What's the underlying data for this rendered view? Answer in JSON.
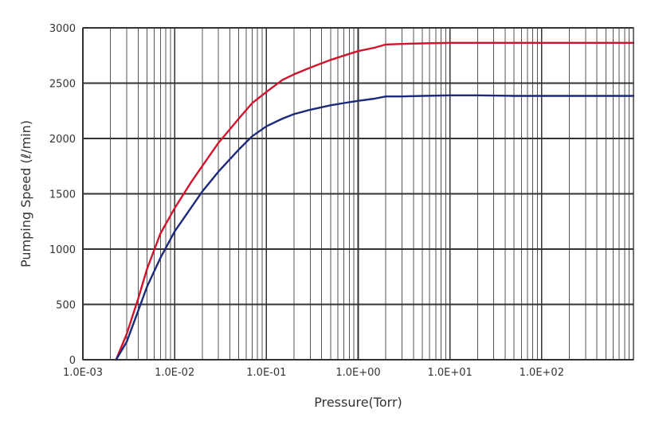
{
  "chart_data": {
    "type": "line",
    "title": "",
    "xlabel": "Pressure(Torr)",
    "ylabel": "Pumping Speed (ℓ/min)",
    "x_scale": "log",
    "xlim": [
      0.001,
      1000
    ],
    "ylim": [
      0,
      3000
    ],
    "x_ticks": [
      0.001,
      0.01,
      0.1,
      1,
      10,
      100
    ],
    "x_tick_labels": [
      "1.0E-03",
      "1.0E-02",
      "1.0E-01",
      "1.0E+00",
      "1.0E+01",
      "1.0E+02"
    ],
    "y_ticks": [
      0,
      500,
      1000,
      1500,
      2000,
      2500,
      3000
    ],
    "y_tick_labels": [
      "0",
      "500",
      "1000",
      "1500",
      "2000",
      "2500",
      "3000"
    ],
    "grid": true,
    "legend": "none",
    "series": [
      {
        "color": "#d0142c",
        "x": [
          0.0023,
          0.003,
          0.004,
          0.005,
          0.007,
          0.01,
          0.015,
          0.02,
          0.03,
          0.05,
          0.07,
          0.1,
          0.15,
          0.2,
          0.3,
          0.5,
          0.7,
          1,
          1.5,
          2,
          3,
          5,
          10,
          20,
          50,
          100,
          200,
          1000
        ],
        "y": [
          0,
          230,
          550,
          820,
          1140,
          1370,
          1600,
          1750,
          1960,
          2180,
          2320,
          2420,
          2530,
          2580,
          2640,
          2710,
          2750,
          2790,
          2820,
          2850,
          2855,
          2860,
          2865,
          2865,
          2865,
          2865,
          2865,
          2865
        ]
      },
      {
        "color": "#1b2a7a",
        "x": [
          0.0023,
          0.003,
          0.004,
          0.005,
          0.007,
          0.01,
          0.015,
          0.02,
          0.03,
          0.05,
          0.07,
          0.1,
          0.15,
          0.2,
          0.3,
          0.5,
          0.7,
          1,
          1.5,
          2,
          3,
          5,
          10,
          20,
          50,
          100,
          200,
          1000
        ],
        "y": [
          0,
          160,
          440,
          660,
          920,
          1160,
          1370,
          1520,
          1700,
          1900,
          2020,
          2110,
          2180,
          2220,
          2260,
          2300,
          2320,
          2340,
          2360,
          2380,
          2380,
          2385,
          2390,
          2390,
          2385,
          2385,
          2385,
          2385
        ]
      }
    ]
  }
}
